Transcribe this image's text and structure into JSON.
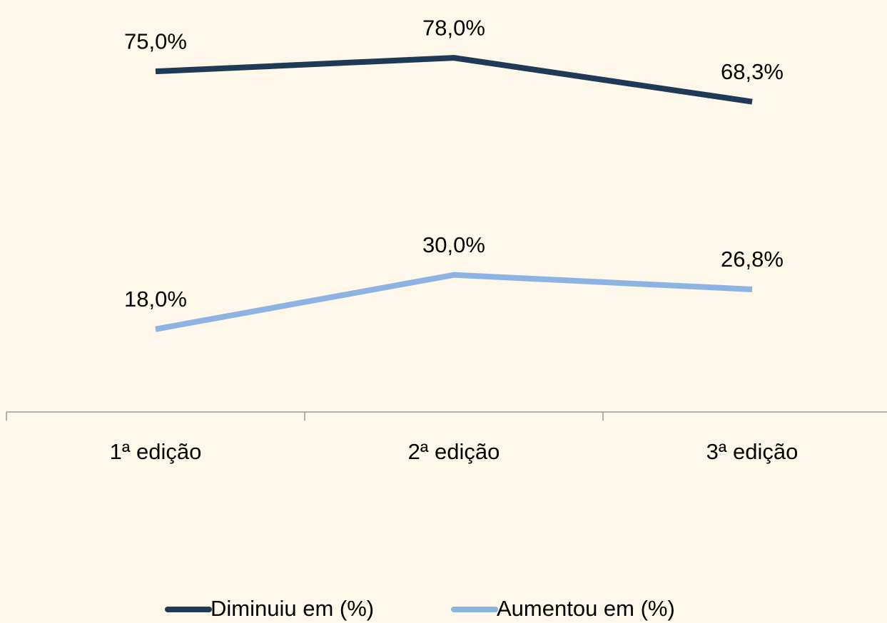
{
  "chart_data": {
    "type": "line",
    "categories": [
      "1ª edição",
      "2ª edição",
      "3ª edição"
    ],
    "series": [
      {
        "name": "Diminuiu em (%)",
        "color": "#1f3a56",
        "values": [
          75.0,
          78.0,
          68.3
        ],
        "value_labels": [
          "75,0%",
          "78,0%",
          "68,3%"
        ]
      },
      {
        "name": "Aumentou em (%)",
        "color": "#8db3e2",
        "values": [
          18.0,
          30.0,
          26.8
        ],
        "value_labels": [
          "18,0%",
          "30,0%",
          "26,8%"
        ]
      }
    ],
    "ylim": [
      0,
      90
    ],
    "legend": "bottom"
  }
}
